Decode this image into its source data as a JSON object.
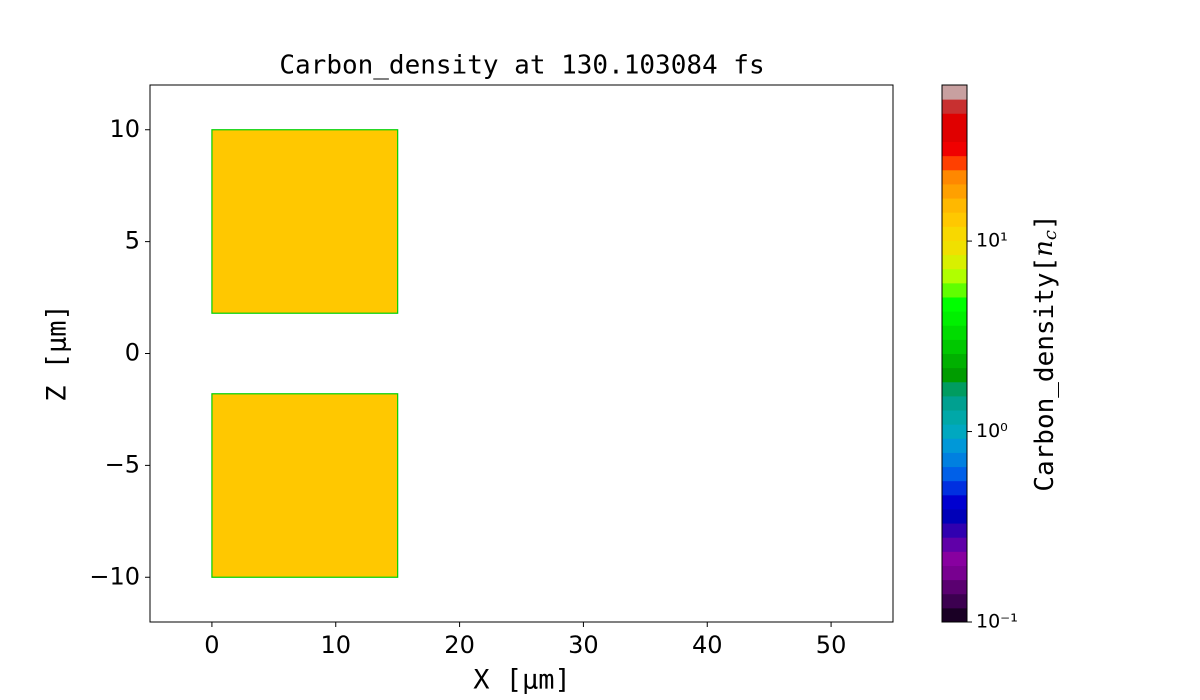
{
  "chart_data": {
    "type": "heatmap",
    "title": "Carbon_density at 130.103084 fs",
    "x_label": "X [μm]",
    "y_label": "Z [μm]",
    "colorbar_label_parts": [
      "Carbon_density[",
      "n",
      "c",
      "]"
    ],
    "xlim": [
      -5,
      55
    ],
    "ylim": [
      -12,
      12
    ],
    "xticks": [
      0,
      10,
      20,
      30,
      40,
      50
    ],
    "yticks": [
      {
        "value": -10,
        "label": "−10"
      },
      {
        "value": -5,
        "label": "−5"
      },
      0,
      5,
      10
    ],
    "regions": [
      {
        "x": [
          0,
          15
        ],
        "z": [
          1.8,
          10
        ],
        "value": 13
      },
      {
        "x": [
          0,
          15
        ],
        "z": [
          -10,
          -1.8
        ],
        "value": 13
      }
    ],
    "colorbar_scale": "log",
    "clim": [
      0.1,
      66
    ],
    "colorbar_ticks": [
      {
        "value": 0.1,
        "label": "10⁻¹"
      },
      {
        "value": 1,
        "label": "10⁰"
      },
      {
        "value": 10,
        "label": "10¹"
      }
    ],
    "colormap": [
      "#1a0025",
      "#3c0050",
      "#5a0070",
      "#780090",
      "#8800a0",
      "#6000a8",
      "#3000b0",
      "#0000b8",
      "#0000d0",
      "#0030e0",
      "#0060e8",
      "#0080e0",
      "#0098d8",
      "#00a8c0",
      "#00a8a8",
      "#00a090",
      "#009c60",
      "#009c00",
      "#00b000",
      "#00c800",
      "#00dc00",
      "#00f000",
      "#00ff00",
      "#60ff00",
      "#b0ff00",
      "#d8f000",
      "#f0e000",
      "#f8d800",
      "#ffc800",
      "#ffb800",
      "#ffa000",
      "#ff8800",
      "#ff4000",
      "#f00000",
      "#e00000",
      "#e00000",
      "#c83030",
      "#c8a0a0"
    ],
    "edge_color": "#00d000"
  }
}
